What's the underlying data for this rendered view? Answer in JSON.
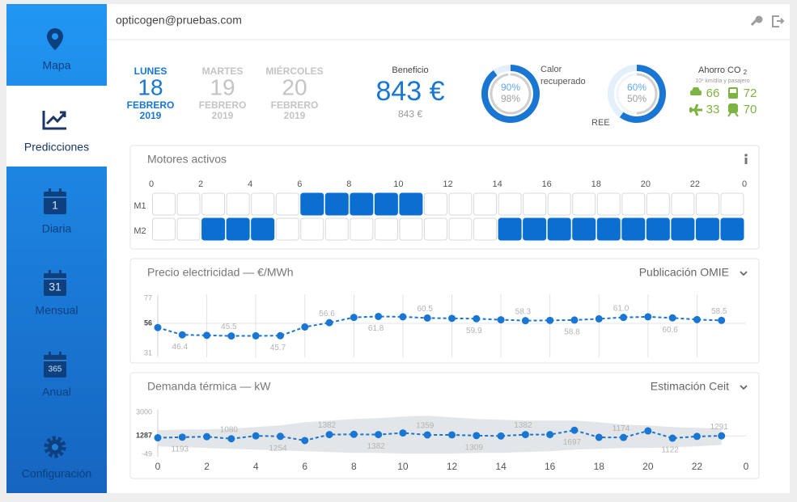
{
  "sidebar": {
    "items": [
      {
        "label": "Mapa"
      },
      {
        "label": "Predicciones",
        "active": true
      },
      {
        "label": "Diaria",
        "icon_text": "1"
      },
      {
        "label": "Mensual",
        "icon_text": "31"
      },
      {
        "label": "Anual",
        "icon_text": "365"
      },
      {
        "label": "Configuración"
      }
    ]
  },
  "header": {
    "user": "opticogen@pruebas.com"
  },
  "dates": [
    {
      "weekday": "LUNES",
      "day": "18",
      "month": "FEBRERO",
      "year": "2019",
      "active": true
    },
    {
      "weekday": "MARTES",
      "day": "19",
      "month": "FEBRERO",
      "year": "2019",
      "active": false
    },
    {
      "weekday": "MIÉRCOLES",
      "day": "20",
      "month": "FEBRERO",
      "year": "2019",
      "active": false
    }
  ],
  "beneficio": {
    "label": "Beneficio",
    "value": "843 €",
    "secondary": "843 €"
  },
  "gauges": [
    {
      "label": "Calor recuperado",
      "values": [
        90,
        98
      ],
      "value_labels": [
        "90%",
        "98%"
      ]
    },
    {
      "label": "REE",
      "values": [
        60,
        50
      ],
      "value_labels": [
        "60%",
        "50%"
      ]
    }
  ],
  "co2": {
    "title": "Ahorro CO",
    "subscript": "2",
    "unit": "10³ km/día y pasajero",
    "values": [
      66,
      72,
      33,
      70
    ]
  },
  "chart_data": [
    {
      "type": "grid",
      "title": "Motores activos",
      "xlim": [
        0,
        24
      ],
      "xticks": [
        0,
        2,
        4,
        6,
        8,
        10,
        12,
        14,
        16,
        18,
        20,
        22,
        {
          "value": 24,
          "label": "0"
        }
      ],
      "series": [
        {
          "name": "M1",
          "color": "#0a6fd1",
          "values": [
            0,
            0,
            0,
            0,
            0,
            0,
            1,
            1,
            1,
            1,
            1,
            0,
            0,
            0,
            0,
            0,
            0,
            0,
            0,
            0,
            0,
            0,
            0,
            0
          ]
        },
        {
          "name": "M2",
          "color": "#0a6fd1",
          "values": [
            0,
            0,
            1,
            1,
            1,
            0,
            0,
            0,
            0,
            0,
            0,
            0,
            0,
            0,
            1,
            1,
            1,
            1,
            1,
            1,
            1,
            1,
            1,
            1
          ]
        }
      ]
    },
    {
      "type": "line",
      "title": "Precio electricidad — €/MWh",
      "dropdown": "Publicación OMIE",
      "x": [
        0,
        1,
        2,
        3,
        4,
        5,
        6,
        7,
        8,
        9,
        10,
        11,
        12,
        13,
        14,
        15,
        16,
        17,
        18,
        19,
        20,
        21,
        22,
        23
      ],
      "xlim": [
        0,
        24
      ],
      "xticks": [
        0,
        2,
        4,
        6,
        8,
        10,
        12,
        14,
        16,
        18,
        20,
        22
      ],
      "show_xtick_labels": false,
      "grid": true,
      "ylim": [
        31,
        77
      ],
      "yticks": [
        77,
        56,
        31
      ],
      "series": [
        {
          "color": "#1976d2",
          "values": [
            52.5,
            46.4,
            46.0,
            45.5,
            45.6,
            45.7,
            53.0,
            56.6,
            61.0,
            61.8,
            61.5,
            60.5,
            60.2,
            59.9,
            59.0,
            58.3,
            58.5,
            58.8,
            59.8,
            61.0,
            61.5,
            60.6,
            59.2,
            58.5
          ],
          "value_labels": [
            null,
            "46.4",
            null,
            "45.5",
            null,
            "45.7",
            null,
            "56.6",
            null,
            "61.8",
            null,
            "60.5",
            null,
            "59.9",
            null,
            "58.3",
            null,
            "58.8",
            null,
            "61.0",
            null,
            "60.6",
            null,
            "58.5"
          ]
        }
      ]
    },
    {
      "type": "line",
      "title": "Demanda térmica — kW",
      "dropdown": "Estimación Ceit",
      "x": [
        0,
        1,
        2,
        3,
        4,
        5,
        6,
        7,
        8,
        9,
        10,
        11,
        12,
        13,
        14,
        15,
        16,
        17,
        18,
        19,
        20,
        21,
        22,
        23
      ],
      "xlim": [
        0,
        24
      ],
      "xticks": [
        0,
        2,
        4,
        6,
        8,
        10,
        12,
        14,
        16,
        18,
        20,
        22,
        {
          "value": 24,
          "label": "0"
        }
      ],
      "show_xtick_labels": true,
      "grid": false,
      "ylim": [
        -49,
        3000
      ],
      "yticks": [
        3000,
        1287,
        -49
      ],
      "band": {
        "color": "#e3e6e8",
        "upper": [
          1697,
          1756,
          1756,
          1814,
          1932,
          2049,
          2283,
          2400,
          2518,
          2576,
          2693,
          2752,
          2635,
          2518,
          2459,
          2400,
          2400,
          2400,
          2283,
          2107,
          2049,
          1932,
          1873,
          1814
        ],
        "lower": [
          525,
          467,
          408,
          349,
          291,
          232,
          174,
          115,
          56,
          56,
          -2,
          -2,
          -2,
          56,
          56,
          115,
          174,
          291,
          349,
          408,
          408,
          467,
          525,
          642
        ]
      },
      "series": [
        {
          "color": "#1976d2",
          "values": [
            1150,
            1193,
            1230,
            1080,
            1290,
            1254,
            950,
            1382,
            1400,
            1382,
            1500,
            1359,
            1360,
            1309,
            1280,
            1382,
            1380,
            1697,
            1180,
            1174,
            1650,
            1122,
            1250,
            1291
          ]
        }
      ]
    }
  ]
}
